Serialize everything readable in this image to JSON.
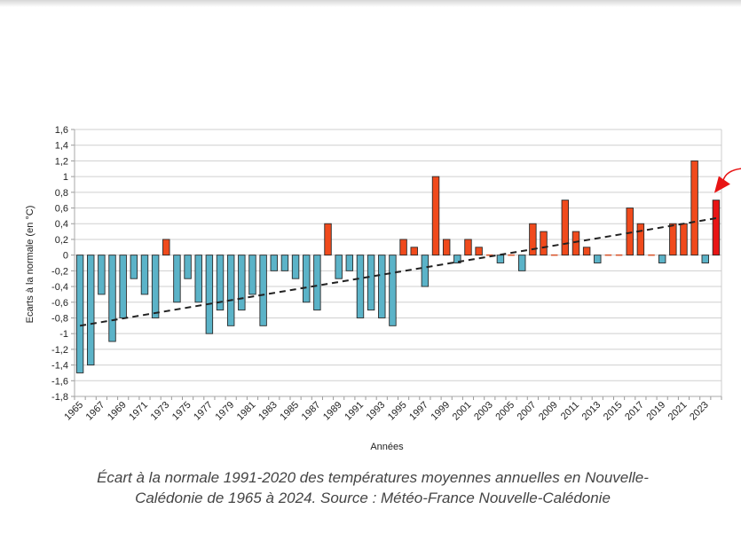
{
  "chart_data": {
    "type": "bar",
    "title": "",
    "xlabel": "Années",
    "ylabel": "Ecarts à la normale (en °C)",
    "ylim": [
      -1.8,
      1.6
    ],
    "ytick_step": 0.2,
    "grid": true,
    "decimal_separator": ",",
    "categories": [
      1965,
      1966,
      1967,
      1968,
      1969,
      1970,
      1971,
      1972,
      1973,
      1974,
      1975,
      1976,
      1977,
      1978,
      1979,
      1980,
      1981,
      1982,
      1983,
      1984,
      1985,
      1986,
      1987,
      1988,
      1989,
      1990,
      1991,
      1992,
      1993,
      1994,
      1995,
      1996,
      1997,
      1998,
      1999,
      2000,
      2001,
      2002,
      2003,
      2004,
      2005,
      2006,
      2007,
      2008,
      2009,
      2010,
      2011,
      2012,
      2013,
      2014,
      2015,
      2016,
      2017,
      2018,
      2019,
      2020,
      2021,
      2022,
      2023,
      2024
    ],
    "xtick_labels_every": 2,
    "values": [
      -1.5,
      -1.4,
      -0.5,
      -1.1,
      -0.8,
      -0.3,
      -0.5,
      -0.8,
      0.2,
      -0.6,
      -0.3,
      -0.6,
      -1.0,
      -0.7,
      -0.9,
      -0.7,
      -0.5,
      -0.9,
      -0.2,
      -0.2,
      -0.3,
      -0.6,
      -0.7,
      0.4,
      -0.3,
      -0.2,
      -0.8,
      -0.7,
      -0.8,
      -0.9,
      0.2,
      0.1,
      -0.4,
      1.0,
      0.2,
      -0.1,
      0.2,
      0.1,
      0.0,
      -0.1,
      0.0,
      -0.2,
      0.4,
      0.3,
      0.0,
      0.7,
      0.3,
      0.1,
      -0.1,
      0.0,
      0.0,
      0.6,
      0.4,
      0.0,
      -0.1,
      0.4,
      0.4,
      1.2,
      -0.1,
      0.7
    ],
    "colors": {
      "positive": "#f04a1c",
      "negative": "#5bb3c8",
      "highlight": "#e81414",
      "bar_border": "#2a2a2a",
      "trend": "#222222",
      "grid": "#cfcfcf",
      "arrow": "#e81414"
    },
    "highlight_category": 2024,
    "trend_line": {
      "style": "dashed",
      "start": {
        "x": 1965,
        "y": -0.9
      },
      "end": {
        "x": 2024,
        "y": 0.47
      }
    },
    "annotation": {
      "type": "arrow",
      "points_to": 2024
    },
    "caption": "Écart à la normale 1991-2020 des températures moyennes annuelles en Nouvelle-Calédonie de 1965 à 2024. Source : Météo-France Nouvelle-Calédonie"
  },
  "caption_lines": [
    "Écart à la normale 1991-2020 des températures moyennes annuelles en Nouvelle-",
    "Calédonie de 1965 à 2024. Source : Météo-France Nouvelle-Calédonie"
  ]
}
